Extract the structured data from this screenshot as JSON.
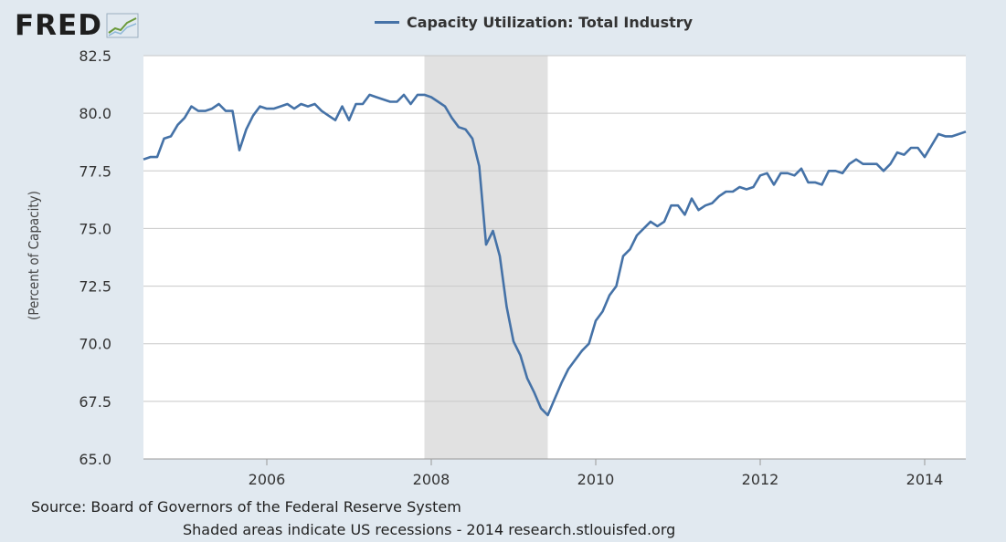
{
  "logo": {
    "text": "FRED",
    "icon": "fred-chart-icon"
  },
  "legend": {
    "label": "Capacity Utilization: Total Industry",
    "color": "#4572a7"
  },
  "footer": {
    "source": "Source: Board of Governors of the Federal Reserve System",
    "note": "Shaded areas indicate US recessions - 2014 research.stlouisfed.org"
  },
  "chart_data": {
    "type": "line",
    "title": "",
    "xlabel": "",
    "ylabel": "(Percent of Capacity)",
    "ylim": [
      65.0,
      82.5
    ],
    "yticks": [
      "65.0",
      "67.5",
      "70.0",
      "72.5",
      "75.0",
      "77.5",
      "80.0",
      "82.5"
    ],
    "xticks": [
      "2006",
      "2008",
      "2010",
      "2012",
      "2014"
    ],
    "xrange": [
      "2004-07",
      "2014-07"
    ],
    "grid": true,
    "recession": {
      "start": "2007-12",
      "end": "2009-06"
    },
    "series": [
      {
        "name": "Capacity Utilization: Total Industry",
        "color": "#4572a7",
        "x": [
          "2004-07",
          "2004-08",
          "2004-09",
          "2004-10",
          "2004-11",
          "2004-12",
          "2005-01",
          "2005-02",
          "2005-03",
          "2005-04",
          "2005-05",
          "2005-06",
          "2005-07",
          "2005-08",
          "2005-09",
          "2005-10",
          "2005-11",
          "2005-12",
          "2006-01",
          "2006-02",
          "2006-03",
          "2006-04",
          "2006-05",
          "2006-06",
          "2006-07",
          "2006-08",
          "2006-09",
          "2006-10",
          "2006-11",
          "2006-12",
          "2007-01",
          "2007-02",
          "2007-03",
          "2007-04",
          "2007-05",
          "2007-06",
          "2007-07",
          "2007-08",
          "2007-09",
          "2007-10",
          "2007-11",
          "2007-12",
          "2008-01",
          "2008-02",
          "2008-03",
          "2008-04",
          "2008-05",
          "2008-06",
          "2008-07",
          "2008-08",
          "2008-09",
          "2008-10",
          "2008-11",
          "2008-12",
          "2009-01",
          "2009-02",
          "2009-03",
          "2009-04",
          "2009-05",
          "2009-06",
          "2009-07",
          "2009-08",
          "2009-09",
          "2009-10",
          "2009-11",
          "2009-12",
          "2010-01",
          "2010-02",
          "2010-03",
          "2010-04",
          "2010-05",
          "2010-06",
          "2010-07",
          "2010-08",
          "2010-09",
          "2010-10",
          "2010-11",
          "2010-12",
          "2011-01",
          "2011-02",
          "2011-03",
          "2011-04",
          "2011-05",
          "2011-06",
          "2011-07",
          "2011-08",
          "2011-09",
          "2011-10",
          "2011-11",
          "2011-12",
          "2012-01",
          "2012-02",
          "2012-03",
          "2012-04",
          "2012-05",
          "2012-06",
          "2012-07",
          "2012-08",
          "2012-09",
          "2012-10",
          "2012-11",
          "2012-12",
          "2013-01",
          "2013-02",
          "2013-03",
          "2013-04",
          "2013-05",
          "2013-06",
          "2013-07",
          "2013-08",
          "2013-09",
          "2013-10",
          "2013-11",
          "2013-12",
          "2014-01",
          "2014-02",
          "2014-03",
          "2014-04",
          "2014-05",
          "2014-06",
          "2014-07"
        ],
        "values": [
          78.0,
          78.1,
          78.1,
          78.9,
          79.0,
          79.5,
          79.8,
          80.3,
          80.1,
          80.1,
          80.2,
          80.4,
          80.1,
          80.1,
          78.4,
          79.3,
          79.9,
          80.3,
          80.2,
          80.2,
          80.3,
          80.4,
          80.2,
          80.4,
          80.3,
          80.4,
          80.1,
          79.9,
          79.7,
          80.3,
          79.7,
          80.4,
          80.4,
          80.8,
          80.7,
          80.6,
          80.5,
          80.5,
          80.8,
          80.4,
          80.8,
          80.8,
          80.7,
          80.5,
          80.3,
          79.8,
          79.4,
          79.3,
          78.9,
          77.7,
          74.3,
          74.9,
          73.8,
          71.6,
          70.1,
          69.5,
          68.5,
          67.9,
          67.2,
          66.9,
          67.6,
          68.3,
          68.9,
          69.3,
          69.7,
          70.0,
          71.0,
          71.4,
          72.1,
          72.5,
          73.8,
          74.1,
          74.7,
          75.0,
          75.3,
          75.1,
          75.3,
          76.0,
          76.0,
          75.6,
          76.3,
          75.8,
          76.0,
          76.1,
          76.4,
          76.6,
          76.6,
          76.8,
          76.7,
          76.8,
          77.3,
          77.4,
          76.9,
          77.4,
          77.4,
          77.3,
          77.6,
          77.0,
          77.0,
          76.9,
          77.5,
          77.5,
          77.4,
          77.8,
          78.0,
          77.8,
          77.8,
          77.8,
          77.5,
          77.8,
          78.3,
          78.2,
          78.5,
          78.5,
          78.1,
          78.6,
          79.1,
          79.0,
          79.0,
          79.1,
          79.2
        ]
      }
    ]
  }
}
